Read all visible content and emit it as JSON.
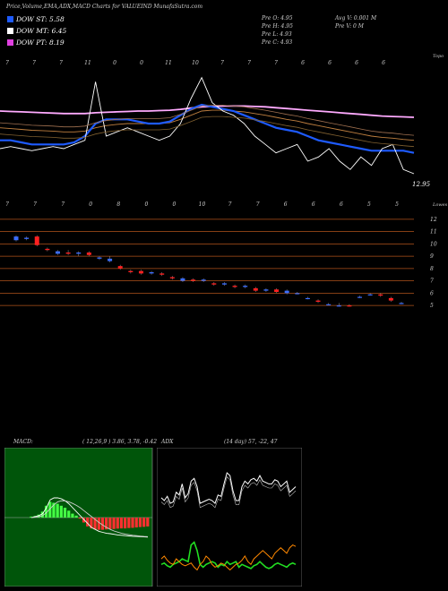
{
  "header": {
    "title": "Price,Volume,EMA,ADX,MACD Charts for VALUEIND MunafaSutra.com",
    "dow_st": "DOW ST: 5.58",
    "dow_mt": "DOW MT: 6.45",
    "dow_pt": "DOW PT: 8.19",
    "pre_o": "Pre  O: 4.95",
    "pre_h": "Pre  H: 4.95",
    "pre_l": "Pre  L: 4.93",
    "pre_c": "Pre  C: 4.93",
    "avg_v": "Avg V: 0.001 M",
    "pre_v": "Pre  V: 0  M"
  },
  "colors": {
    "dow_st": "#1e5bff",
    "dow_mt": "#ffffff",
    "dow_pt": "#e040e0",
    "bull": "#3b6dff",
    "bear": "#ff2020",
    "grid": "#b0521a",
    "macd_bg": "#00550a"
  },
  "chart_data": [
    {
      "type": "line",
      "name": "ema-price",
      "label_top": "Topo",
      "last_value_label": "12.95",
      "top_ticks": [
        "7",
        "7",
        "7",
        "11",
        "0",
        "0",
        "11",
        "10",
        "7",
        "7",
        "7",
        "6",
        "6",
        "6",
        "6"
      ],
      "bottom_ticks": [
        "7",
        "7",
        "7",
        "0",
        "8",
        "0",
        "0",
        "10",
        "7",
        "7",
        "6",
        "6",
        "6",
        "5",
        "5"
      ],
      "series": [
        {
          "name": "close",
          "color": "#ffffff",
          "values": [
            12.9,
            12.95,
            12.9,
            12.85,
            12.9,
            12.95,
            12.9,
            13.0,
            13.1,
            14.5,
            13.2,
            13.3,
            13.4,
            13.3,
            13.2,
            13.1,
            13.2,
            13.5,
            14.1,
            14.6,
            14.0,
            13.8,
            13.7,
            13.5,
            13.2,
            13.0,
            12.8,
            12.9,
            13.0,
            12.6,
            12.7,
            12.9,
            12.6,
            12.4,
            12.7,
            12.5,
            12.9,
            13.0,
            12.4,
            12.3
          ]
        },
        {
          "name": "ema-fast",
          "color": "#1e5bff",
          "values": [
            13.1,
            13.1,
            13.05,
            13.0,
            13.0,
            13.0,
            13.0,
            13.05,
            13.2,
            13.5,
            13.6,
            13.6,
            13.6,
            13.55,
            13.5,
            13.5,
            13.55,
            13.7,
            13.85,
            13.95,
            13.9,
            13.85,
            13.8,
            13.7,
            13.6,
            13.5,
            13.4,
            13.35,
            13.3,
            13.2,
            13.1,
            13.05,
            13.0,
            12.95,
            12.9,
            12.85,
            12.85,
            12.85,
            12.85,
            12.8
          ]
        },
        {
          "name": "ema-mid",
          "color": "#c08040",
          "values": [
            13.4,
            13.38,
            13.36,
            13.34,
            13.33,
            13.32,
            13.3,
            13.3,
            13.32,
            13.4,
            13.45,
            13.48,
            13.5,
            13.5,
            13.5,
            13.5,
            13.52,
            13.6,
            13.7,
            13.8,
            13.82,
            13.82,
            13.8,
            13.78,
            13.74,
            13.7,
            13.65,
            13.6,
            13.56,
            13.5,
            13.45,
            13.4,
            13.35,
            13.3,
            13.25,
            13.2,
            13.17,
            13.15,
            13.12,
            13.1
          ]
        },
        {
          "name": "ema-slow",
          "color": "#ffaaff",
          "values": [
            13.8,
            13.79,
            13.78,
            13.77,
            13.76,
            13.75,
            13.74,
            13.74,
            13.74,
            13.76,
            13.77,
            13.78,
            13.79,
            13.8,
            13.8,
            13.81,
            13.82,
            13.84,
            13.87,
            13.9,
            13.91,
            13.92,
            13.92,
            13.92,
            13.91,
            13.9,
            13.88,
            13.86,
            13.84,
            13.82,
            13.8,
            13.78,
            13.76,
            13.74,
            13.72,
            13.7,
            13.68,
            13.67,
            13.66,
            13.65
          ]
        }
      ]
    },
    {
      "type": "bar",
      "name": "candles",
      "label_top": "Lowes",
      "y_ticks": [
        "12",
        "11",
        "10",
        "9",
        "8",
        "7",
        "6",
        "5"
      ],
      "ylim": [
        4.5,
        12.5
      ],
      "candles": [
        {
          "o": 10.3,
          "c": 10.6,
          "h": 10.7,
          "l": 10.2
        },
        {
          "o": 10.4,
          "c": 10.5,
          "h": 10.6,
          "l": 10.3
        },
        {
          "o": 10.6,
          "c": 9.9,
          "h": 10.7,
          "l": 9.8
        },
        {
          "o": 9.6,
          "c": 9.5,
          "h": 9.7,
          "l": 9.4
        },
        {
          "o": 9.2,
          "c": 9.4,
          "h": 9.5,
          "l": 9.1
        },
        {
          "o": 9.3,
          "c": 9.2,
          "h": 9.5,
          "l": 9.1
        },
        {
          "o": 9.2,
          "c": 9.3,
          "h": 9.4,
          "l": 9.0
        },
        {
          "o": 9.3,
          "c": 9.1,
          "h": 9.4,
          "l": 9.0
        },
        {
          "o": 8.8,
          "c": 8.9,
          "h": 9.0,
          "l": 8.7
        },
        {
          "o": 8.6,
          "c": 8.8,
          "h": 9.0,
          "l": 8.5
        },
        {
          "o": 8.2,
          "c": 8.0,
          "h": 8.3,
          "l": 7.9
        },
        {
          "o": 7.8,
          "c": 7.7,
          "h": 7.9,
          "l": 7.6
        },
        {
          "o": 7.8,
          "c": 7.6,
          "h": 7.9,
          "l": 7.5
        },
        {
          "o": 7.6,
          "c": 7.7,
          "h": 7.8,
          "l": 7.5
        },
        {
          "o": 7.6,
          "c": 7.5,
          "h": 7.7,
          "l": 7.4
        },
        {
          "o": 7.3,
          "c": 7.2,
          "h": 7.4,
          "l": 7.1
        },
        {
          "o": 7.0,
          "c": 7.2,
          "h": 7.3,
          "l": 6.9
        },
        {
          "o": 7.1,
          "c": 7.0,
          "h": 7.2,
          "l": 6.9
        },
        {
          "o": 7.0,
          "c": 7.1,
          "h": 7.2,
          "l": 6.9
        },
        {
          "o": 6.8,
          "c": 6.7,
          "h": 6.9,
          "l": 6.6
        },
        {
          "o": 6.7,
          "c": 6.8,
          "h": 6.9,
          "l": 6.6
        },
        {
          "o": 6.6,
          "c": 6.5,
          "h": 6.7,
          "l": 6.4
        },
        {
          "o": 6.5,
          "c": 6.6,
          "h": 6.7,
          "l": 6.4
        },
        {
          "o": 6.4,
          "c": 6.2,
          "h": 6.5,
          "l": 6.1
        },
        {
          "o": 6.2,
          "c": 6.3,
          "h": 6.4,
          "l": 6.1
        },
        {
          "o": 6.3,
          "c": 6.1,
          "h": 6.4,
          "l": 6.0
        },
        {
          "o": 6.0,
          "c": 6.2,
          "h": 6.3,
          "l": 5.9
        },
        {
          "o": 6.0,
          "c": 6.0,
          "h": 6.1,
          "l": 5.9
        },
        {
          "o": 5.6,
          "c": 5.6,
          "h": 5.7,
          "l": 5.5
        },
        {
          "o": 5.4,
          "c": 5.3,
          "h": 5.5,
          "l": 5.2
        },
        {
          "o": 5.1,
          "c": 5.1,
          "h": 5.2,
          "l": 5.0
        },
        {
          "o": 5.0,
          "c": 5.0,
          "h": 5.2,
          "l": 4.9
        },
        {
          "o": 5.0,
          "c": 4.95,
          "h": 5.1,
          "l": 4.9
        },
        {
          "o": 5.7,
          "c": 5.7,
          "h": 5.8,
          "l": 5.6
        },
        {
          "o": 5.9,
          "c": 5.9,
          "h": 6.0,
          "l": 5.8
        },
        {
          "o": 5.9,
          "c": 5.8,
          "h": 6.0,
          "l": 5.7
        },
        {
          "o": 5.6,
          "c": 5.4,
          "h": 5.7,
          "l": 5.3
        },
        {
          "o": 5.2,
          "c": 5.2,
          "h": 5.3,
          "l": 5.1
        }
      ]
    },
    {
      "type": "bar",
      "name": "macd",
      "label": "MACD:",
      "params": "( 12,26,9 ) 3.86, 3.78, -0.42",
      "histogram": [
        0.05,
        0.08,
        0.15,
        0.3,
        0.6,
        0.8,
        0.75,
        0.7,
        0.6,
        0.5,
        0.35,
        0.2,
        0.1,
        -0.05,
        -0.25,
        -0.45,
        -0.55,
        -0.6,
        -0.62,
        -0.62,
        -0.6,
        -0.58,
        -0.58,
        -0.56,
        -0.55,
        -0.55,
        -0.53,
        -0.52,
        -0.5,
        -0.48,
        -0.47,
        -0.45
      ],
      "macd_line": [
        0.0,
        0.05,
        0.1,
        0.2,
        0.5,
        0.9,
        1.0,
        1.0,
        0.95,
        0.85,
        0.7,
        0.5,
        0.3,
        0.1,
        -0.1,
        -0.3,
        -0.5,
        -0.6,
        -0.7,
        -0.75,
        -0.8,
        -0.82,
        -0.85,
        -0.88,
        -0.9,
        -0.92,
        -0.93,
        -0.95,
        -0.96,
        -0.97,
        -0.98,
        -0.99
      ],
      "signal_line": [
        0.0,
        0.02,
        0.05,
        0.1,
        0.25,
        0.45,
        0.65,
        0.8,
        0.85,
        0.85,
        0.8,
        0.72,
        0.62,
        0.5,
        0.35,
        0.2,
        0.05,
        -0.1,
        -0.25,
        -0.38,
        -0.5,
        -0.6,
        -0.68,
        -0.74,
        -0.8,
        -0.84,
        -0.87,
        -0.9,
        -0.92,
        -0.94,
        -0.96,
        -0.97
      ]
    },
    {
      "type": "line",
      "name": "adx",
      "label": "ADX",
      "params": "(14  day) 57, -22, 47",
      "series": [
        {
          "name": "adx-main",
          "color": "#ffffff",
          "values": [
            62,
            60,
            63,
            58,
            59,
            66,
            64,
            72,
            62,
            65,
            74,
            76,
            70,
            58,
            59,
            60,
            61,
            60,
            58,
            64,
            63,
            72,
            80,
            78,
            67,
            60,
            60,
            70,
            74,
            72,
            75,
            76,
            74,
            78,
            74,
            73,
            72,
            72,
            75,
            74,
            70,
            72,
            74,
            66,
            68,
            70
          ]
        },
        {
          "name": "plus-di",
          "color": "#22dd22",
          "values": [
            14,
            15,
            13,
            12,
            14,
            15,
            16,
            18,
            17,
            16,
            28,
            30,
            24,
            14,
            12,
            14,
            15,
            16,
            15,
            12,
            14,
            13,
            16,
            14,
            15,
            16,
            12,
            14,
            13,
            12,
            11,
            13,
            14,
            16,
            14,
            12,
            11,
            12,
            14,
            15,
            14,
            13,
            12,
            14,
            15,
            14
          ]
        },
        {
          "name": "minus-di",
          "color": "#ff8800",
          "values": [
            18,
            20,
            17,
            15,
            14,
            18,
            16,
            14,
            13,
            14,
            15,
            12,
            10,
            14,
            16,
            20,
            18,
            14,
            12,
            13,
            15,
            14,
            12,
            10,
            12,
            14,
            15,
            17,
            20,
            16,
            14,
            18,
            20,
            22,
            24,
            22,
            20,
            18,
            22,
            24,
            26,
            24,
            22,
            26,
            28,
            27
          ]
        }
      ]
    }
  ]
}
